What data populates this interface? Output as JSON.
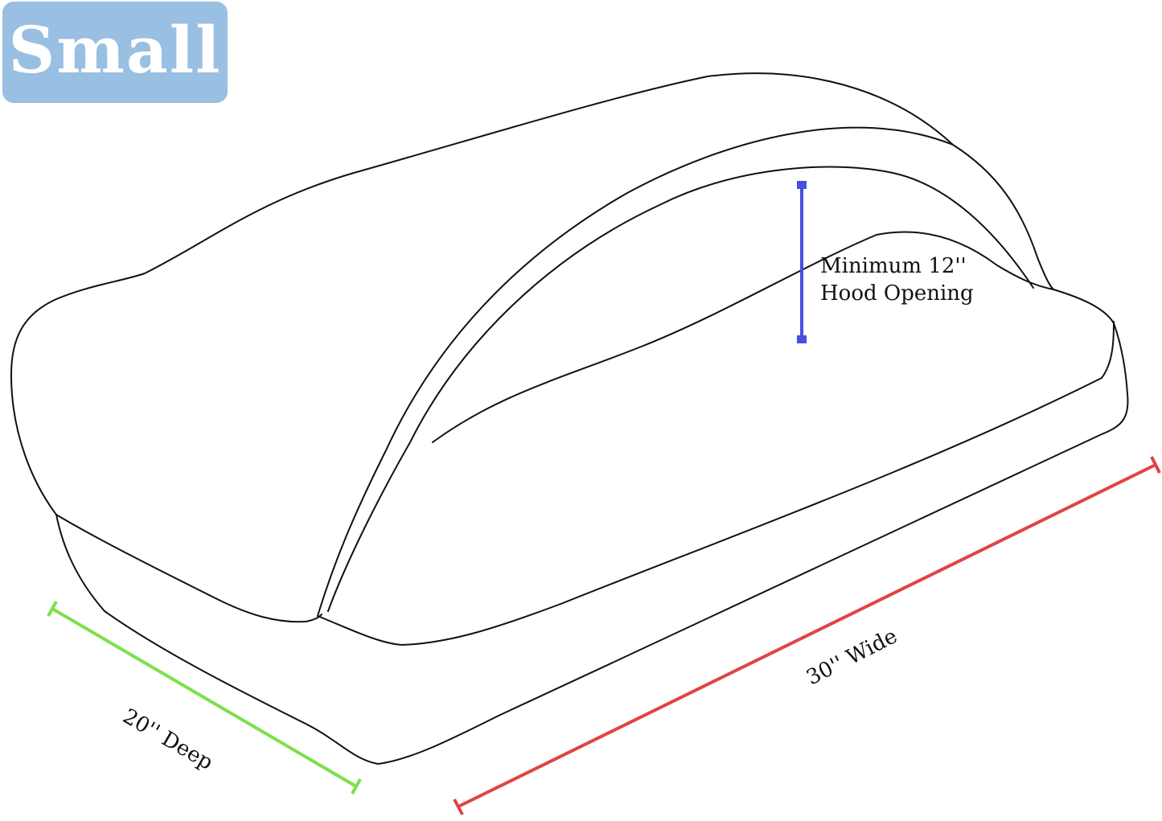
{
  "size_badge": {
    "label": "Small",
    "color": "#99bfe2"
  },
  "dimensions": {
    "hood": {
      "label_line1": "Minimum 12''",
      "label_line2": "Hood Opening",
      "color": "#4a4ee0"
    },
    "depth": {
      "label": "20'' Deep",
      "color": "#7ee04a"
    },
    "width": {
      "label": "30'' Wide",
      "color": "#e04444"
    }
  }
}
